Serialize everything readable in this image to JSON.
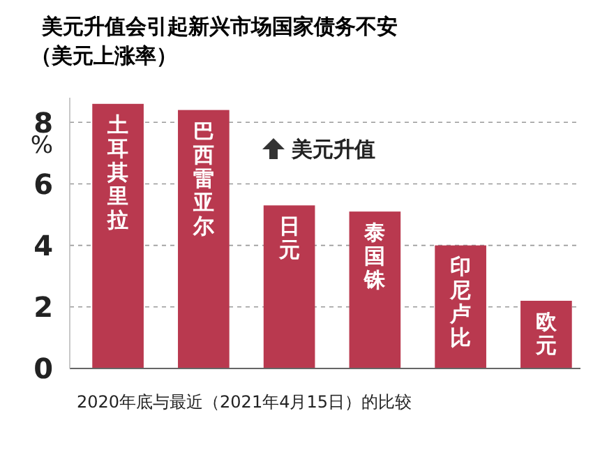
{
  "chart_data": {
    "type": "bar",
    "title": "美元升值会引起新兴市场国家债务不安",
    "subtitle": "（美元上涨率）",
    "ylabel": "%",
    "categories": [
      "土耳其里拉",
      "巴西雷亚尔",
      "日元",
      "泰国铢",
      "印尼卢比",
      "欧元"
    ],
    "values": [
      8.6,
      8.4,
      5.3,
      5.1,
      4.0,
      2.2
    ],
    "color": "#b9394f",
    "ylim": [
      0,
      8.8
    ],
    "yticks": [
      0,
      2,
      4,
      6,
      8
    ],
    "grid": "y",
    "annotations": [
      {
        "text": "美元升值"
      },
      "2020年底与最近（2021年4月15日）的比较"
    ]
  }
}
